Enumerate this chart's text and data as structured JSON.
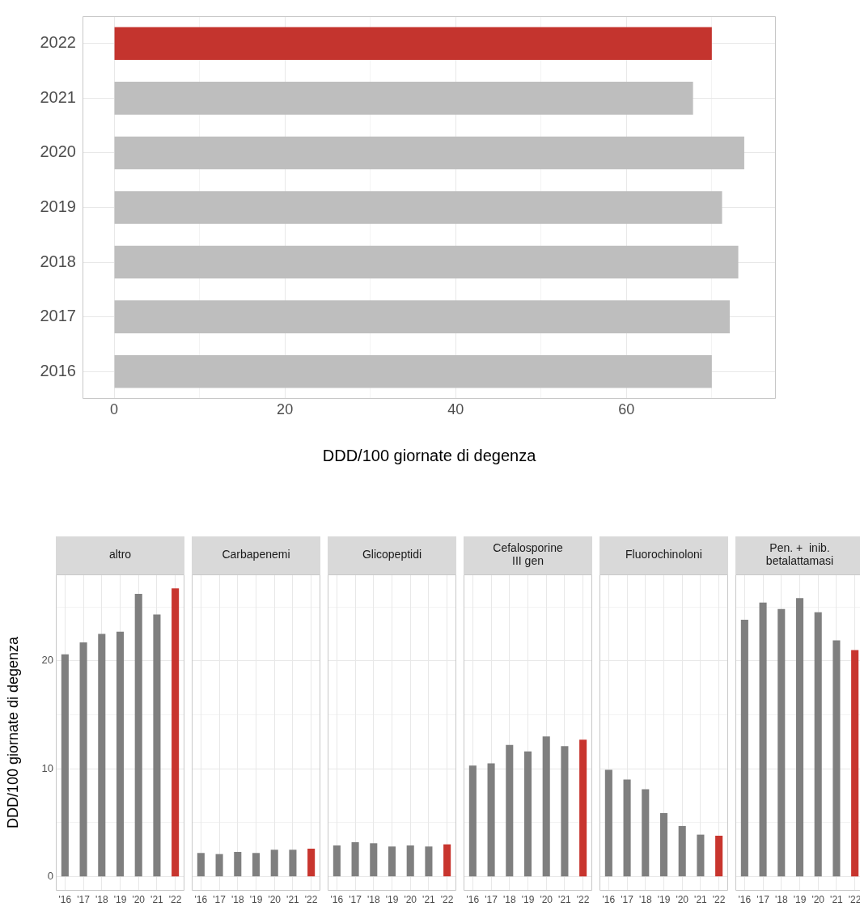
{
  "chart_data": [
    {
      "type": "bar",
      "orientation": "horizontal",
      "xlabel": "DDD/100 giornate di degenza",
      "categories": [
        "2022",
        "2021",
        "2020",
        "2019",
        "2018",
        "2017",
        "2016"
      ],
      "values": [
        70.0,
        67.8,
        73.8,
        71.2,
        73.1,
        72.1,
        70.0
      ],
      "colors": [
        "#c4342e",
        "#bebebe",
        "#bebebe",
        "#bebebe",
        "#bebebe",
        "#bebebe",
        "#bebebe"
      ],
      "xlim": [
        -3.7,
        77.5
      ],
      "xticks": [
        0,
        {
          "value": 10,
          "label": null
        },
        20,
        {
          "value": 30,
          "label": null
        },
        40,
        {
          "value": 50,
          "label": null
        },
        60,
        {
          "value": 70,
          "label": null
        }
      ],
      "grid": true
    },
    {
      "type": "bar",
      "title": "altro",
      "ylabel": "DDD/100 giornate di degenza",
      "categories": [
        "'16",
        "'17",
        "'18",
        "'19",
        "'20",
        "'21",
        "'22"
      ],
      "values": [
        20.6,
        21.7,
        22.5,
        22.7,
        26.2,
        24.3,
        26.7
      ],
      "colors": [
        "#7f7f7f",
        "#7f7f7f",
        "#7f7f7f",
        "#7f7f7f",
        "#7f7f7f",
        "#7f7f7f",
        "#c8352e"
      ],
      "ylim": [
        -1.3,
        28
      ],
      "yticks": [
        0,
        {
          "value": 5,
          "label": null
        },
        10,
        {
          "value": 15,
          "label": null
        },
        20,
        {
          "value": 25,
          "label": null
        }
      ],
      "grid": true
    },
    {
      "type": "bar",
      "title": "Carbapenemi",
      "categories": [
        "'16",
        "'17",
        "'18",
        "'19",
        "'20",
        "'21",
        "'22"
      ],
      "values": [
        2.2,
        2.1,
        2.3,
        2.2,
        2.5,
        2.5,
        2.6
      ],
      "colors": [
        "#7f7f7f",
        "#7f7f7f",
        "#7f7f7f",
        "#7f7f7f",
        "#7f7f7f",
        "#7f7f7f",
        "#c8352e"
      ],
      "ylim": [
        -1.3,
        28
      ],
      "yticks": [
        0,
        {
          "value": 5,
          "label": null
        },
        10,
        {
          "value": 15,
          "label": null
        },
        20,
        {
          "value": 25,
          "label": null
        }
      ],
      "grid": true,
      "tick_labels": "x"
    },
    {
      "type": "bar",
      "title": "Glicopeptidi",
      "categories": [
        "'16",
        "'17",
        "'18",
        "'19",
        "'20",
        "'21",
        "'22"
      ],
      "values": [
        2.9,
        3.2,
        3.1,
        2.8,
        2.9,
        2.8,
        3.0
      ],
      "colors": [
        "#7f7f7f",
        "#7f7f7f",
        "#7f7f7f",
        "#7f7f7f",
        "#7f7f7f",
        "#7f7f7f",
        "#c8352e"
      ],
      "ylim": [
        -1.3,
        28
      ],
      "yticks": [
        0,
        {
          "value": 5,
          "label": null
        },
        10,
        {
          "value": 15,
          "label": null
        },
        20,
        {
          "value": 25,
          "label": null
        }
      ],
      "grid": true,
      "tick_labels": "x"
    },
    {
      "type": "bar",
      "title": "Cefalosporine\nIII gen",
      "categories": [
        "'16",
        "'17",
        "'18",
        "'19",
        "'20",
        "'21",
        "'22"
      ],
      "values": [
        10.3,
        10.5,
        12.2,
        11.6,
        13.0,
        12.1,
        12.7
      ],
      "colors": [
        "#7f7f7f",
        "#7f7f7f",
        "#7f7f7f",
        "#7f7f7f",
        "#7f7f7f",
        "#7f7f7f",
        "#c8352e"
      ],
      "ylim": [
        -1.3,
        28
      ],
      "yticks": [
        0,
        {
          "value": 5,
          "label": null
        },
        10,
        {
          "value": 15,
          "label": null
        },
        20,
        {
          "value": 25,
          "label": null
        }
      ],
      "grid": true,
      "tick_labels": "x"
    },
    {
      "type": "bar",
      "title": "Fluorochinoloni",
      "categories": [
        "'16",
        "'17",
        "'18",
        "'19",
        "'20",
        "'21",
        "'22"
      ],
      "values": [
        9.9,
        9.0,
        8.1,
        5.9,
        4.7,
        3.9,
        3.8
      ],
      "colors": [
        "#7f7f7f",
        "#7f7f7f",
        "#7f7f7f",
        "#7f7f7f",
        "#7f7f7f",
        "#7f7f7f",
        "#c8352e"
      ],
      "ylim": [
        -1.3,
        28
      ],
      "yticks": [
        0,
        {
          "value": 5,
          "label": null
        },
        10,
        {
          "value": 15,
          "label": null
        },
        20,
        {
          "value": 25,
          "label": null
        }
      ],
      "grid": true,
      "tick_labels": "x"
    },
    {
      "type": "bar",
      "title": "Pen. +  inib.\nbetalattamasi",
      "categories": [
        "'16",
        "'17",
        "'18",
        "'19",
        "'20",
        "'21",
        "'22"
      ],
      "values": [
        23.8,
        25.4,
        24.8,
        25.8,
        24.5,
        21.9,
        21.0
      ],
      "colors": [
        "#7f7f7f",
        "#7f7f7f",
        "#7f7f7f",
        "#7f7f7f",
        "#7f7f7f",
        "#7f7f7f",
        "#c8352e"
      ],
      "ylim": [
        -1.3,
        28
      ],
      "yticks": [
        0,
        {
          "value": 5,
          "label": null
        },
        10,
        {
          "value": 15,
          "label": null
        },
        20,
        {
          "value": 25,
          "label": null
        }
      ],
      "grid": true,
      "tick_labels": "x"
    }
  ]
}
